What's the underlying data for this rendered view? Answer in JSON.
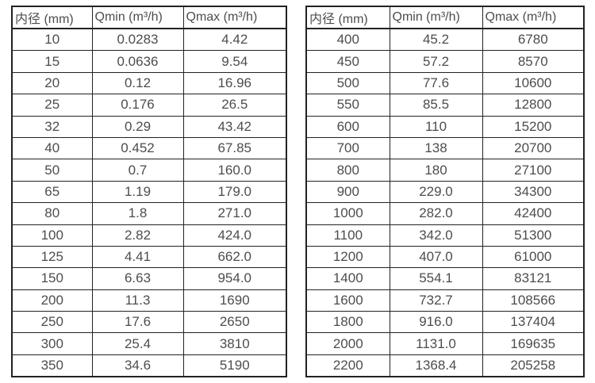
{
  "page": {
    "background_color": "#ffffff",
    "border_color": "#222222",
    "text_color": "#4d4d4d"
  },
  "tables": [
    {
      "name": "flow-spec-table-small-diameters",
      "headers": [
        "内径 (mm)",
        "Qmin (m³/h)",
        "Qmax (m³/h)"
      ],
      "rows": [
        [
          "10",
          "0.0283",
          "4.42"
        ],
        [
          "15",
          "0.0636",
          "9.54"
        ],
        [
          "20",
          "0.12",
          "16.96"
        ],
        [
          "25",
          "0.176",
          "26.5"
        ],
        [
          "32",
          "0.29",
          "43.42"
        ],
        [
          "40",
          "0.452",
          "67.85"
        ],
        [
          "50",
          "0.7",
          "160.0"
        ],
        [
          "65",
          "1.19",
          "179.0"
        ],
        [
          "80",
          "1.8",
          "271.0"
        ],
        [
          "100",
          "2.82",
          "424.0"
        ],
        [
          "125",
          "4.41",
          "662.0"
        ],
        [
          "150",
          "6.63",
          "954.0"
        ],
        [
          "200",
          "11.3",
          "1690"
        ],
        [
          "250",
          "17.6",
          "2650"
        ],
        [
          "300",
          "25.4",
          "3810"
        ],
        [
          "350",
          "34.6",
          "5190"
        ]
      ]
    },
    {
      "name": "flow-spec-table-large-diameters",
      "headers": [
        "内径 (mm)",
        "Qmin (m³/h)",
        "Qmax (m³/h)"
      ],
      "rows": [
        [
          "400",
          "45.2",
          "6780"
        ],
        [
          "450",
          "57.2",
          "8570"
        ],
        [
          "500",
          "77.6",
          "10600"
        ],
        [
          "550",
          "85.5",
          "12800"
        ],
        [
          "600",
          "110",
          "15200"
        ],
        [
          "700",
          "138",
          "20700"
        ],
        [
          "800",
          "180",
          "27100"
        ],
        [
          "900",
          "229.0",
          "34300"
        ],
        [
          "1000",
          "282.0",
          "42400"
        ],
        [
          "1100",
          "342.0",
          "51300"
        ],
        [
          "1200",
          "407.0",
          "61000"
        ],
        [
          "1400",
          "554.1",
          "83121"
        ],
        [
          "1600",
          "732.7",
          "108566"
        ],
        [
          "1800",
          "916.0",
          "137404"
        ],
        [
          "2000",
          "1131.0",
          "169635"
        ],
        [
          "2200",
          "1368.4",
          "205258"
        ]
      ]
    }
  ]
}
